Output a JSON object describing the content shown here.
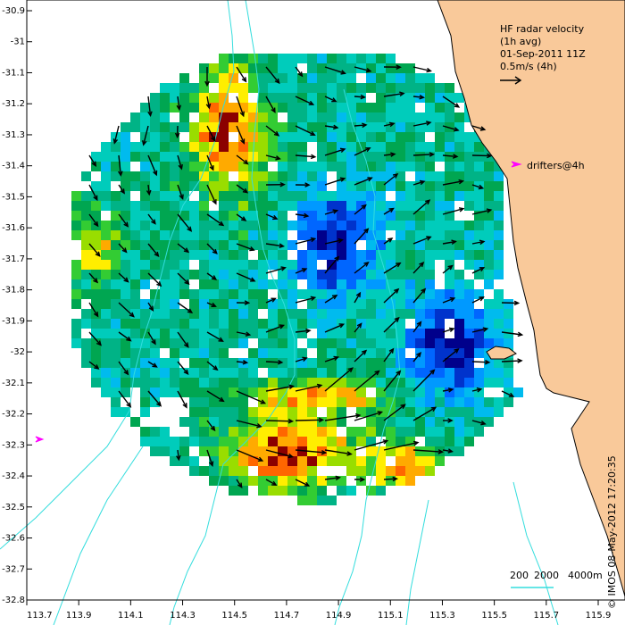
{
  "chart_data": {
    "type": "heatmap",
    "title_lines": [
      "HF radar velocity",
      "(1h avg)",
      "01-Sep-2011 11Z",
      "0.5m/s (4h)"
    ],
    "drifters_label": "drifters@4h",
    "credit": "© IMOS 08-May-2012 17:20:35",
    "scale_bar": [
      "200",
      "2000",
      "4000m"
    ],
    "x_ticks": [
      "113.7",
      "113.9",
      "114.1",
      "114.3",
      "114.5",
      "114.7",
      "114.9",
      "115.1",
      "115.3",
      "115.5",
      "115.7",
      "115.9"
    ],
    "y_ticks": [
      "-30.9",
      "-31",
      "-31.1",
      "-31.2",
      "-31.3",
      "-31.4",
      "-31.5",
      "-31.6",
      "-31.7",
      "-31.8",
      "-31.9",
      "-32",
      "-32.1",
      "-32.2",
      "-32.3",
      "-32.4",
      "-32.5",
      "-32.6",
      "-32.7",
      "-32.8"
    ],
    "xlim": [
      113.7,
      115.9
    ],
    "ylim": [
      -32.8,
      -30.9
    ],
    "colors": {
      "land": "#f9c99a",
      "bathymetry": "#33dddd",
      "drifter": "#ff00ff",
      "arrow": "#000000"
    }
  }
}
